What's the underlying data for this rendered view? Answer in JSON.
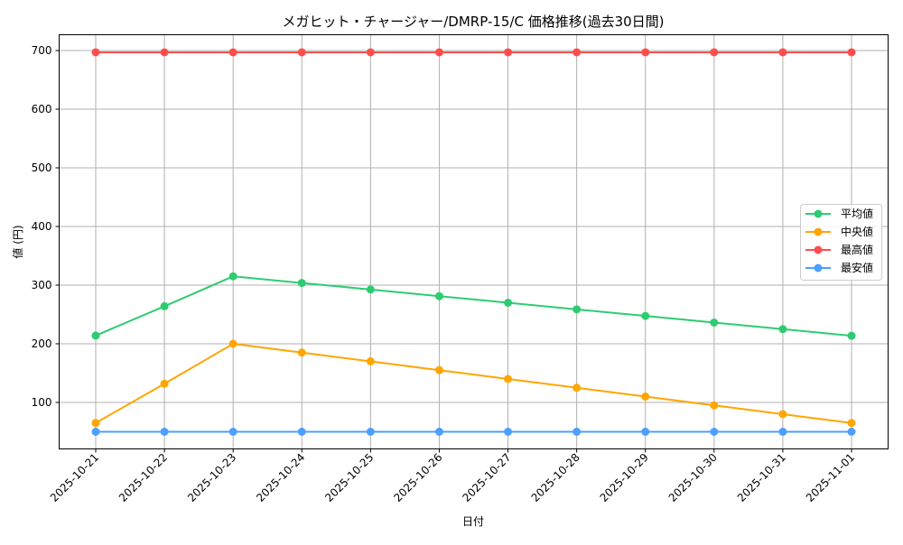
{
  "chart_data": {
    "type": "line",
    "title": "メガヒット・チャージャー/DMRP-15/C 価格推移(過去30日間)",
    "xlabel": "日付",
    "ylabel": "値 (円)",
    "categories": [
      "2025-10-21",
      "2025-10-22",
      "2025-10-23",
      "2025-10-24",
      "2025-10-25",
      "2025-10-26",
      "2025-10-27",
      "2025-10-28",
      "2025-10-29",
      "2025-10-30",
      "2025-10-31",
      "2025-11-01"
    ],
    "series": [
      {
        "name": "平均値",
        "color": "#2ecc71",
        "values": [
          214,
          264,
          315,
          303.7,
          292.5,
          281.2,
          270,
          258.7,
          247.5,
          236.2,
          225,
          213.7
        ]
      },
      {
        "name": "中央値",
        "color": "#ffa500",
        "values": [
          65,
          132,
          200,
          185,
          170,
          155,
          140,
          125,
          110,
          95,
          80,
          65
        ]
      },
      {
        "name": "最高値",
        "color": "#ff4d4d",
        "values": [
          697,
          697,
          697,
          697,
          697,
          697,
          697,
          697,
          697,
          697,
          697,
          697
        ]
      },
      {
        "name": "最安値",
        "color": "#4d9fff",
        "values": [
          50,
          50,
          50,
          50,
          50,
          50,
          50,
          50,
          50,
          50,
          50,
          50
        ]
      }
    ],
    "yticks": [
      100,
      200,
      300,
      400,
      500,
      600,
      700
    ],
    "ylim": [
      18,
      728
    ],
    "grid": true,
    "legend_position": "center right"
  }
}
